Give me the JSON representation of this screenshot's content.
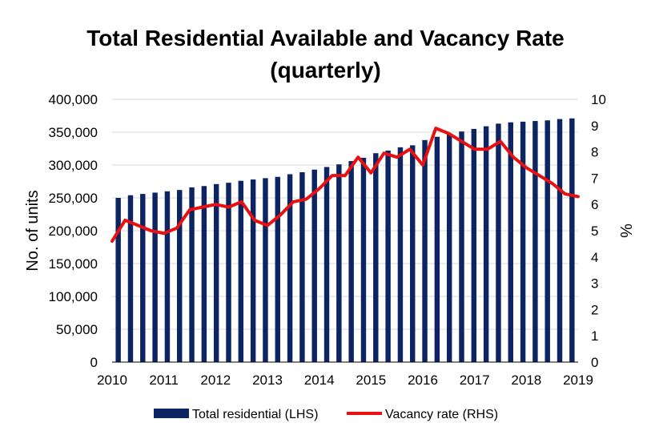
{
  "chart_data": {
    "type": "bar",
    "title_line1": "Total Residential Available and Vacancy Rate",
    "title_line2": "(quarterly)",
    "ylabel": "No. of units",
    "y2label": "%",
    "ylim": [
      0,
      400000
    ],
    "y2lim": [
      0,
      10
    ],
    "y_ticks": [
      "0",
      "50,000",
      "100,000",
      "150,000",
      "200,000",
      "250,000",
      "300,000",
      "350,000",
      "400,000"
    ],
    "y2_ticks": [
      "0",
      "1",
      "2",
      "3",
      "4",
      "5",
      "6",
      "7",
      "8",
      "9",
      "10"
    ],
    "x_tick_labels": [
      "2010",
      "2011",
      "2012",
      "2013",
      "2014",
      "2015",
      "2016",
      "2017",
      "2018",
      "2019"
    ],
    "grid": true,
    "legend_position": "bottom",
    "series": [
      {
        "name": "Total residential (LHS)",
        "kind": "bar",
        "axis": "left",
        "color": "#0c2461",
        "values": [
          250000,
          254000,
          256000,
          258000,
          260000,
          262000,
          266000,
          268000,
          271000,
          273000,
          276000,
          278000,
          280000,
          282000,
          286000,
          289000,
          293000,
          297000,
          301000,
          306000,
          311000,
          318000,
          322000,
          327000,
          330000,
          338000,
          343000,
          347000,
          351000,
          355000,
          359000,
          363000,
          365000,
          366000,
          367000,
          368000,
          370000,
          371000
        ]
      },
      {
        "name": "Vacancy rate (RHS)",
        "kind": "line",
        "axis": "right",
        "color": "#e81010",
        "values": [
          4.6,
          5.4,
          5.2,
          5.0,
          4.9,
          5.1,
          5.8,
          5.9,
          6.0,
          5.9,
          6.1,
          5.4,
          5.2,
          5.6,
          6.1,
          6.2,
          6.6,
          7.1,
          7.1,
          7.8,
          7.2,
          7.95,
          7.8,
          8.1,
          7.5,
          8.9,
          8.7,
          8.4,
          8.1,
          8.1,
          8.4,
          7.8,
          7.4,
          7.1,
          6.8,
          6.4,
          6.3
        ]
      }
    ]
  }
}
